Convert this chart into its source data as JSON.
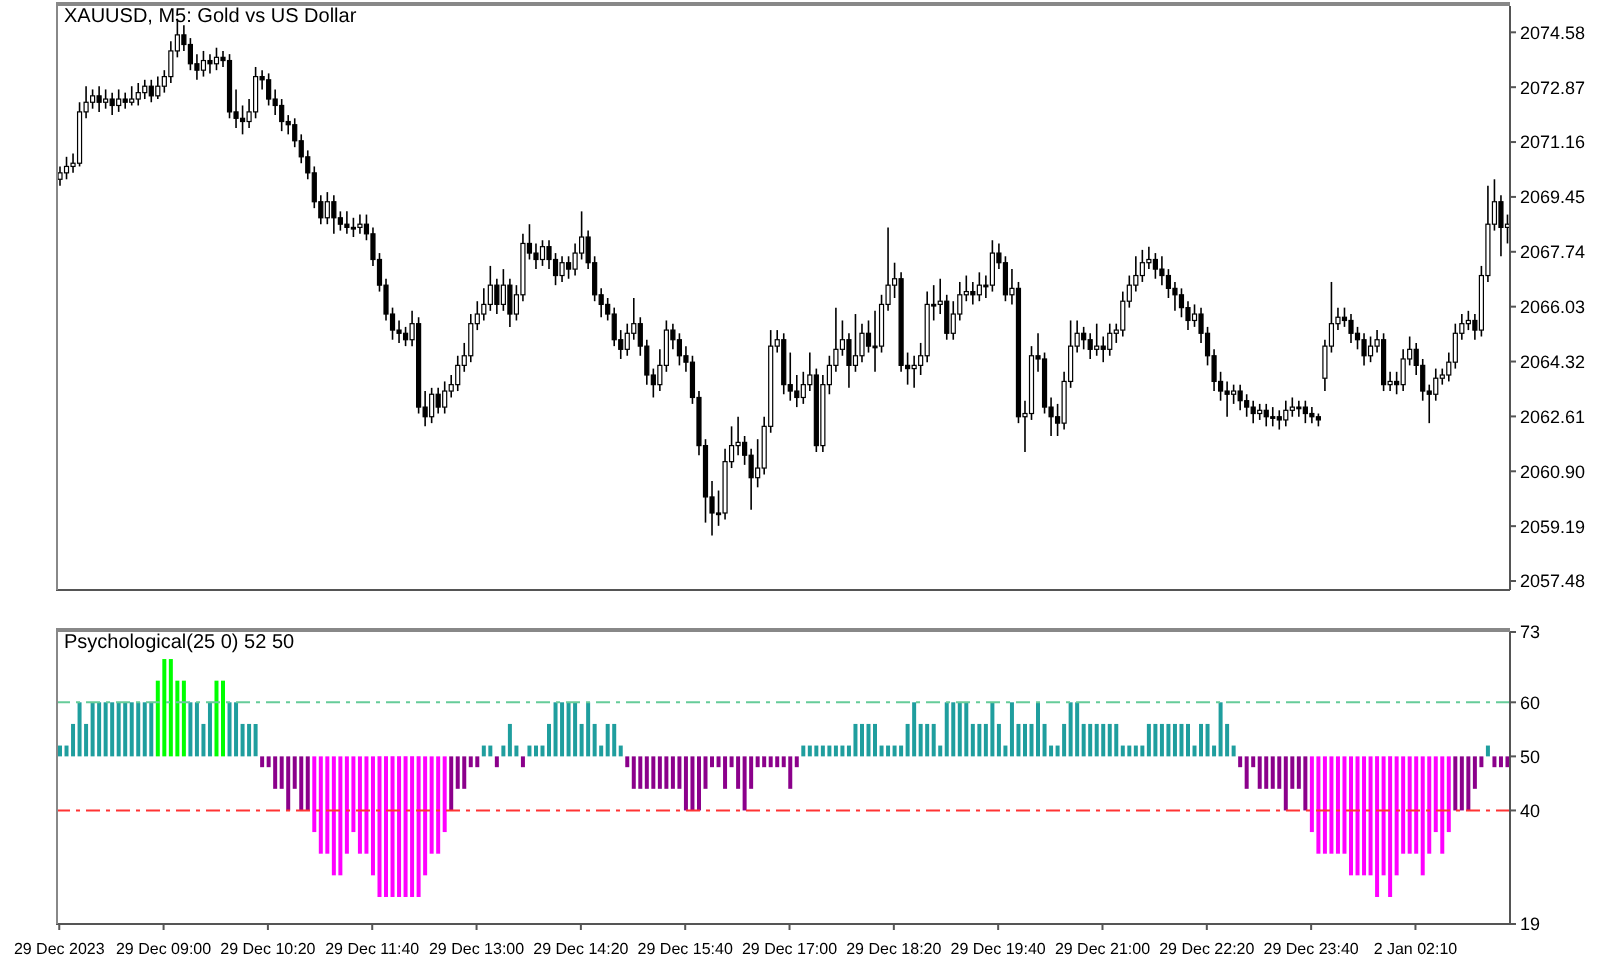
{
  "chart_data": [
    {
      "type": "candlestick",
      "title": "XAUUSD, M5:  Gold vs US Dollar",
      "color": "#000000",
      "tick_labels": "y",
      "ylim": [
        2057.2,
        2075.4
      ],
      "yticks": [
        2074.58,
        2072.87,
        2071.16,
        2069.45,
        2067.74,
        2066.03,
        2064.32,
        2062.61,
        {
          "value": 2060.9,
          "label": "2060.90"
        },
        2059.19,
        2057.48
      ],
      "ohlc": [
        [
          2070.0,
          2070.4,
          2069.8,
          2070.2
        ],
        [
          2070.2,
          2070.7,
          2070.0,
          2070.4
        ],
        [
          2070.4,
          2070.8,
          2070.2,
          2070.5
        ],
        [
          2070.5,
          2072.4,
          2070.4,
          2072.1
        ],
        [
          2072.1,
          2072.9,
          2071.9,
          2072.4
        ],
        [
          2072.4,
          2072.8,
          2072.2,
          2072.6
        ],
        [
          2072.6,
          2072.9,
          2072.1,
          2072.4
        ],
        [
          2072.4,
          2072.8,
          2072.2,
          2072.5
        ],
        [
          2072.5,
          2072.7,
          2072.0,
          2072.3
        ],
        [
          2072.3,
          2072.8,
          2072.1,
          2072.5
        ],
        [
          2072.5,
          2072.7,
          2072.2,
          2072.4
        ],
        [
          2072.4,
          2072.9,
          2072.3,
          2072.5
        ],
        [
          2072.5,
          2073.0,
          2072.3,
          2072.7
        ],
        [
          2072.7,
          2073.1,
          2072.5,
          2072.9
        ],
        [
          2072.9,
          2073.1,
          2072.4,
          2072.6
        ],
        [
          2072.6,
          2073.2,
          2072.5,
          2072.9
        ],
        [
          2072.9,
          2073.4,
          2072.7,
          2073.2
        ],
        [
          2073.2,
          2074.3,
          2073.0,
          2074.0
        ],
        [
          2074.0,
          2075.0,
          2073.8,
          2074.5
        ],
        [
          2074.5,
          2074.8,
          2074.0,
          2074.2
        ],
        [
          2074.2,
          2074.4,
          2073.4,
          2073.6
        ],
        [
          2073.6,
          2073.9,
          2073.1,
          2073.4
        ],
        [
          2073.4,
          2074.0,
          2073.2,
          2073.7
        ],
        [
          2073.7,
          2073.9,
          2073.3,
          2073.6
        ],
        [
          2073.6,
          2074.1,
          2073.4,
          2073.8
        ],
        [
          2073.8,
          2074.0,
          2073.5,
          2073.7
        ],
        [
          2073.7,
          2073.9,
          2071.9,
          2072.1
        ],
        [
          2072.1,
          2072.8,
          2071.6,
          2071.9
        ],
        [
          2071.9,
          2072.3,
          2071.4,
          2071.8
        ],
        [
          2071.8,
          2072.5,
          2071.6,
          2072.1
        ],
        [
          2072.1,
          2073.5,
          2071.9,
          2073.2
        ],
        [
          2073.2,
          2073.4,
          2072.8,
          2073.1
        ],
        [
          2073.1,
          2073.3,
          2072.3,
          2072.5
        ],
        [
          2072.5,
          2072.8,
          2072.0,
          2072.3
        ],
        [
          2072.3,
          2072.5,
          2071.5,
          2071.8
        ],
        [
          2071.8,
          2072.0,
          2071.4,
          2071.7
        ],
        [
          2071.7,
          2071.9,
          2071.0,
          2071.2
        ],
        [
          2071.2,
          2071.4,
          2070.5,
          2070.7
        ],
        [
          2070.7,
          2070.9,
          2070.0,
          2070.2
        ],
        [
          2070.2,
          2070.4,
          2069.1,
          2069.3
        ],
        [
          2069.3,
          2069.5,
          2068.6,
          2068.8
        ],
        [
          2068.8,
          2069.6,
          2068.6,
          2069.3
        ],
        [
          2069.3,
          2069.5,
          2068.3,
          2068.8
        ],
        [
          2068.8,
          2069.0,
          2068.4,
          2068.6
        ],
        [
          2068.6,
          2069.0,
          2068.3,
          2068.5
        ],
        [
          2068.5,
          2068.8,
          2068.2,
          2068.5
        ],
        [
          2068.5,
          2068.9,
          2068.3,
          2068.6
        ],
        [
          2068.6,
          2068.9,
          2068.1,
          2068.3
        ],
        [
          2068.3,
          2068.5,
          2067.3,
          2067.5
        ],
        [
          2067.5,
          2067.7,
          2066.5,
          2066.7
        ],
        [
          2066.7,
          2066.9,
          2065.6,
          2065.8
        ],
        [
          2065.8,
          2066.0,
          2065.0,
          2065.3
        ],
        [
          2065.3,
          2065.6,
          2064.9,
          2065.2
        ],
        [
          2065.2,
          2065.4,
          2064.8,
          2065.0
        ],
        [
          2065.0,
          2065.9,
          2064.8,
          2065.5
        ],
        [
          2065.5,
          2065.7,
          2062.7,
          2062.9
        ],
        [
          2062.9,
          2063.4,
          2062.3,
          2062.6
        ],
        [
          2062.6,
          2063.5,
          2062.4,
          2063.3
        ],
        [
          2063.3,
          2063.5,
          2062.7,
          2062.9
        ],
        [
          2062.9,
          2063.7,
          2062.7,
          2063.4
        ],
        [
          2063.4,
          2063.9,
          2063.2,
          2063.6
        ],
        [
          2063.6,
          2064.5,
          2063.4,
          2064.2
        ],
        [
          2064.2,
          2064.9,
          2064.0,
          2064.5
        ],
        [
          2064.5,
          2065.8,
          2064.3,
          2065.5
        ],
        [
          2065.5,
          2066.2,
          2065.3,
          2065.8
        ],
        [
          2065.8,
          2066.6,
          2065.6,
          2066.1
        ],
        [
          2066.1,
          2067.3,
          2065.9,
          2066.7
        ],
        [
          2066.7,
          2066.9,
          2065.8,
          2066.1
        ],
        [
          2066.1,
          2067.2,
          2065.9,
          2066.7
        ],
        [
          2066.7,
          2066.9,
          2065.4,
          2065.8
        ],
        [
          2065.8,
          2066.7,
          2065.6,
          2066.4
        ],
        [
          2066.4,
          2068.3,
          2066.2,
          2068.0
        ],
        [
          2068.0,
          2068.6,
          2067.5,
          2067.7
        ],
        [
          2067.7,
          2068.0,
          2067.2,
          2067.5
        ],
        [
          2067.5,
          2068.1,
          2067.3,
          2067.9
        ],
        [
          2067.9,
          2068.1,
          2067.2,
          2067.5
        ],
        [
          2067.5,
          2067.7,
          2066.7,
          2067.0
        ],
        [
          2067.0,
          2067.6,
          2066.8,
          2067.4
        ],
        [
          2067.4,
          2067.6,
          2066.9,
          2067.2
        ],
        [
          2067.2,
          2068.0,
          2067.0,
          2067.7
        ],
        [
          2067.7,
          2069.0,
          2067.5,
          2068.2
        ],
        [
          2068.2,
          2068.4,
          2067.2,
          2067.4
        ],
        [
          2067.4,
          2067.6,
          2066.2,
          2066.4
        ],
        [
          2066.4,
          2066.6,
          2065.7,
          2066.1
        ],
        [
          2066.1,
          2066.3,
          2065.6,
          2065.8
        ],
        [
          2065.8,
          2066.0,
          2064.8,
          2065.0
        ],
        [
          2065.0,
          2065.3,
          2064.4,
          2064.7
        ],
        [
          2064.7,
          2065.5,
          2064.5,
          2065.2
        ],
        [
          2065.2,
          2066.3,
          2065.0,
          2065.5
        ],
        [
          2065.5,
          2065.7,
          2064.5,
          2064.8
        ],
        [
          2064.8,
          2065.0,
          2063.6,
          2063.9
        ],
        [
          2063.9,
          2064.1,
          2063.2,
          2063.6
        ],
        [
          2063.6,
          2064.7,
          2063.4,
          2064.2
        ],
        [
          2064.2,
          2065.6,
          2064.0,
          2065.3
        ],
        [
          2065.3,
          2065.5,
          2064.7,
          2065.0
        ],
        [
          2065.0,
          2065.2,
          2064.2,
          2064.5
        ],
        [
          2064.5,
          2064.8,
          2064.0,
          2064.3
        ],
        [
          2064.3,
          2064.5,
          2063.0,
          2063.2
        ],
        [
          2063.2,
          2063.4,
          2061.4,
          2061.7
        ],
        [
          2061.7,
          2061.9,
          2059.3,
          2060.1
        ],
        [
          2060.1,
          2060.6,
          2058.9,
          2059.6
        ],
        [
          2059.6,
          2060.3,
          2059.2,
          2059.6
        ],
        [
          2059.6,
          2061.6,
          2059.4,
          2061.2
        ],
        [
          2061.2,
          2062.3,
          2061.0,
          2061.7
        ],
        [
          2061.7,
          2062.6,
          2061.4,
          2061.8
        ],
        [
          2061.8,
          2062.0,
          2061.1,
          2061.4
        ],
        [
          2061.4,
          2061.6,
          2059.7,
          2060.7
        ],
        [
          2060.7,
          2061.9,
          2060.4,
          2061.0
        ],
        [
          2061.0,
          2062.6,
          2060.8,
          2062.3
        ],
        [
          2062.3,
          2065.3,
          2062.1,
          2064.8
        ],
        [
          2064.8,
          2065.3,
          2064.6,
          2065.0
        ],
        [
          2065.0,
          2065.2,
          2063.3,
          2063.6
        ],
        [
          2063.6,
          2064.6,
          2063.1,
          2063.4
        ],
        [
          2063.4,
          2063.9,
          2062.9,
          2063.2
        ],
        [
          2063.2,
          2064.0,
          2063.0,
          2063.6
        ],
        [
          2063.6,
          2064.6,
          2063.4,
          2063.9
        ],
        [
          2063.9,
          2064.1,
          2061.5,
          2061.7
        ],
        [
          2061.7,
          2063.9,
          2061.5,
          2063.6
        ],
        [
          2063.6,
          2064.5,
          2063.3,
          2064.2
        ],
        [
          2064.2,
          2066.0,
          2064.0,
          2064.7
        ],
        [
          2064.7,
          2065.6,
          2064.5,
          2065.0
        ],
        [
          2065.0,
          2065.2,
          2063.5,
          2064.2
        ],
        [
          2064.2,
          2065.8,
          2064.0,
          2064.5
        ],
        [
          2064.5,
          2065.5,
          2064.3,
          2065.2
        ],
        [
          2065.2,
          2065.6,
          2064.6,
          2064.8
        ],
        [
          2064.8,
          2065.9,
          2064.0,
          2064.8
        ],
        [
          2064.8,
          2066.4,
          2064.6,
          2066.1
        ],
        [
          2066.1,
          2068.5,
          2065.9,
          2066.7
        ],
        [
          2066.7,
          2067.4,
          2066.3,
          2066.9
        ],
        [
          2066.9,
          2067.1,
          2064.0,
          2064.2
        ],
        [
          2064.2,
          2064.6,
          2063.6,
          2064.1
        ],
        [
          2064.1,
          2064.5,
          2063.5,
          2064.2
        ],
        [
          2064.2,
          2064.9,
          2063.9,
          2064.5
        ],
        [
          2064.5,
          2066.5,
          2064.3,
          2066.1
        ],
        [
          2066.1,
          2066.7,
          2065.6,
          2066.1
        ],
        [
          2066.1,
          2066.9,
          2065.8,
          2066.2
        ],
        [
          2066.2,
          2066.4,
          2065.0,
          2065.2
        ],
        [
          2065.2,
          2066.2,
          2065.0,
          2065.8
        ],
        [
          2065.8,
          2066.8,
          2065.6,
          2066.4
        ],
        [
          2066.4,
          2067.0,
          2066.2,
          2066.5
        ],
        [
          2066.5,
          2066.8,
          2066.1,
          2066.4
        ],
        [
          2066.4,
          2067.1,
          2066.2,
          2066.7
        ],
        [
          2066.7,
          2067.0,
          2066.3,
          2066.7
        ],
        [
          2066.7,
          2068.1,
          2066.5,
          2067.7
        ],
        [
          2067.7,
          2068.0,
          2067.2,
          2067.4
        ],
        [
          2067.4,
          2067.6,
          2066.2,
          2066.4
        ],
        [
          2066.4,
          2067.2,
          2066.1,
          2066.6
        ],
        [
          2066.6,
          2066.8,
          2062.4,
          2062.6
        ],
        [
          2062.6,
          2063.1,
          2061.5,
          2062.7
        ],
        [
          2062.7,
          2064.8,
          2062.5,
          2064.5
        ],
        [
          2064.5,
          2065.2,
          2064.0,
          2064.4
        ],
        [
          2064.4,
          2064.6,
          2062.7,
          2062.9
        ],
        [
          2062.9,
          2063.2,
          2062.0,
          2062.6
        ],
        [
          2062.6,
          2063.0,
          2062.0,
          2062.4
        ],
        [
          2062.4,
          2064.0,
          2062.2,
          2063.7
        ],
        [
          2063.7,
          2065.6,
          2063.5,
          2064.8
        ],
        [
          2064.8,
          2065.6,
          2064.6,
          2065.2
        ],
        [
          2065.2,
          2065.4,
          2064.7,
          2065.0
        ],
        [
          2065.0,
          2065.2,
          2064.4,
          2064.7
        ],
        [
          2064.7,
          2065.5,
          2064.5,
          2064.8
        ],
        [
          2064.8,
          2065.1,
          2064.3,
          2064.7
        ],
        [
          2064.7,
          2065.5,
          2064.5,
          2065.2
        ],
        [
          2065.2,
          2065.5,
          2064.9,
          2065.3
        ],
        [
          2065.3,
          2066.5,
          2065.1,
          2066.2
        ],
        [
          2066.2,
          2067.0,
          2066.0,
          2066.7
        ],
        [
          2066.7,
          2067.6,
          2066.5,
          2067.0
        ],
        [
          2067.0,
          2067.8,
          2066.8,
          2067.4
        ],
        [
          2067.4,
          2067.9,
          2067.2,
          2067.5
        ],
        [
          2067.5,
          2067.7,
          2066.9,
          2067.2
        ],
        [
          2067.2,
          2067.6,
          2066.7,
          2067.0
        ],
        [
          2067.0,
          2067.2,
          2066.3,
          2066.6
        ],
        [
          2066.6,
          2066.8,
          2065.9,
          2066.4
        ],
        [
          2066.4,
          2066.6,
          2065.7,
          2066.0
        ],
        [
          2066.0,
          2066.2,
          2065.3,
          2065.6
        ],
        [
          2065.6,
          2066.1,
          2065.4,
          2065.8
        ],
        [
          2065.8,
          2066.0,
          2064.9,
          2065.2
        ],
        [
          2065.2,
          2065.4,
          2064.2,
          2064.5
        ],
        [
          2064.5,
          2064.7,
          2063.4,
          2063.7
        ],
        [
          2063.7,
          2064.0,
          2063.1,
          2063.4
        ],
        [
          2063.4,
          2063.7,
          2062.6,
          2063.3
        ],
        [
          2063.3,
          2063.6,
          2063.0,
          2063.4
        ],
        [
          2063.4,
          2063.6,
          2062.8,
          2063.1
        ],
        [
          2063.1,
          2063.3,
          2062.6,
          2062.9
        ],
        [
          2062.9,
          2063.1,
          2062.4,
          2062.7
        ],
        [
          2062.7,
          2063.0,
          2062.5,
          2062.8
        ],
        [
          2062.8,
          2063.0,
          2062.3,
          2062.6
        ],
        [
          2062.6,
          2062.9,
          2062.3,
          2062.6
        ],
        [
          2062.6,
          2062.8,
          2062.2,
          2062.5
        ],
        [
          2062.5,
          2063.1,
          2062.3,
          2062.8
        ],
        [
          2062.8,
          2063.2,
          2062.6,
          2062.9
        ],
        [
          2062.9,
          2063.1,
          2062.6,
          2062.9
        ],
        [
          2062.9,
          2063.1,
          2062.4,
          2062.7
        ],
        [
          2062.7,
          2062.9,
          2062.4,
          2062.6
        ],
        [
          2062.6,
          2062.7,
          2062.3,
          2062.5
        ],
        [
          2063.8,
          2065.0,
          2063.4,
          2064.8
        ],
        [
          2064.8,
          2066.8,
          2064.6,
          2065.5
        ],
        [
          2065.5,
          2066.0,
          2065.3,
          2065.7
        ],
        [
          2065.7,
          2066.0,
          2065.4,
          2065.6
        ],
        [
          2065.6,
          2065.8,
          2064.9,
          2065.2
        ],
        [
          2065.2,
          2065.4,
          2064.7,
          2065.0
        ],
        [
          2065.0,
          2065.2,
          2064.2,
          2064.5
        ],
        [
          2064.5,
          2065.1,
          2064.3,
          2064.8
        ],
        [
          2064.8,
          2065.3,
          2064.6,
          2065.0
        ],
        [
          2065.0,
          2065.2,
          2063.4,
          2063.6
        ],
        [
          2063.6,
          2064.0,
          2063.4,
          2063.7
        ],
        [
          2063.7,
          2064.0,
          2063.3,
          2063.6
        ],
        [
          2063.6,
          2064.7,
          2063.4,
          2064.4
        ],
        [
          2064.4,
          2065.1,
          2064.2,
          2064.7
        ],
        [
          2064.7,
          2064.9,
          2063.9,
          2064.2
        ],
        [
          2064.2,
          2064.4,
          2063.1,
          2063.4
        ],
        [
          2063.4,
          2063.6,
          2062.4,
          2063.3
        ],
        [
          2063.3,
          2064.1,
          2063.1,
          2063.8
        ],
        [
          2063.8,
          2064.1,
          2063.6,
          2063.9
        ],
        [
          2063.9,
          2064.6,
          2063.7,
          2064.3
        ],
        [
          2064.3,
          2065.5,
          2064.1,
          2065.2
        ],
        [
          2065.2,
          2065.8,
          2065.0,
          2065.5
        ],
        [
          2065.5,
          2065.9,
          2065.3,
          2065.6
        ],
        [
          2065.6,
          2065.8,
          2065.0,
          2065.3
        ],
        [
          2065.3,
          2067.3,
          2065.1,
          2067.0
        ],
        [
          2067.0,
          2069.8,
          2066.8,
          2068.6
        ],
        [
          2068.6,
          2070.0,
          2068.4,
          2069.3
        ],
        [
          2069.3,
          2069.5,
          2067.6,
          2068.5
        ],
        [
          2068.5,
          2068.9,
          2068.0,
          2068.6
        ]
      ]
    },
    {
      "type": "bar",
      "title": "Psychological(25 0) 52 50",
      "categories": [
        "29 Dec 2023",
        null,
        null,
        null,
        null,
        null,
        null,
        null,
        null,
        null,
        null,
        null,
        null,
        null,
        null,
        null,
        "29 Dec 09:00",
        null,
        null,
        null,
        null,
        null,
        null,
        null,
        null,
        null,
        null,
        null,
        null,
        null,
        null,
        null,
        "29 Dec 10:20",
        null,
        null,
        null,
        null,
        null,
        null,
        null,
        null,
        null,
        null,
        null,
        null,
        null,
        null,
        null,
        "29 Dec 11:40",
        null,
        null,
        null,
        null,
        null,
        null,
        null,
        null,
        null,
        null,
        null,
        null,
        null,
        null,
        null,
        "29 Dec 13:00",
        null,
        null,
        null,
        null,
        null,
        null,
        null,
        null,
        null,
        null,
        null,
        null,
        null,
        null,
        null,
        "29 Dec 14:20",
        null,
        null,
        null,
        null,
        null,
        null,
        null,
        null,
        null,
        null,
        null,
        null,
        null,
        null,
        null,
        "29 Dec 15:40",
        null,
        null,
        null,
        null,
        null,
        null,
        null,
        null,
        null,
        null,
        null,
        null,
        null,
        null,
        null,
        "29 Dec 17:00",
        null,
        null,
        null,
        null,
        null,
        null,
        null,
        null,
        null,
        null,
        null,
        null,
        null,
        null,
        null,
        "29 Dec 18:20",
        null,
        null,
        null,
        null,
        null,
        null,
        null,
        null,
        null,
        null,
        null,
        null,
        null,
        null,
        null,
        "29 Dec 19:40",
        null,
        null,
        null,
        null,
        null,
        null,
        null,
        null,
        null,
        null,
        null,
        null,
        null,
        null,
        null,
        "29 Dec 21:00",
        null,
        null,
        null,
        null,
        null,
        null,
        null,
        null,
        null,
        null,
        null,
        null,
        null,
        null,
        null,
        "29 Dec 22:20",
        null,
        null,
        null,
        null,
        null,
        null,
        null,
        null,
        null,
        null,
        null,
        null,
        null,
        null,
        null,
        "29 Dec 23:40",
        null,
        null,
        null,
        null,
        null,
        null,
        null,
        null,
        null,
        null,
        null,
        null,
        null,
        null,
        null,
        "2 Jan 02:10",
        null,
        null,
        null,
        null,
        null,
        null,
        null,
        null,
        null,
        null,
        null,
        null,
        null,
        null
      ],
      "ylim": [
        19,
        73
      ],
      "yticks": [
        73,
        60,
        50,
        40,
        19
      ],
      "ref_lines": [
        {
          "axis": "y",
          "value": 60,
          "color": "#66cc99",
          "line_style": "dashed"
        },
        {
          "axis": "y",
          "value": 40,
          "color": "#ff3333",
          "line_style": "dashed"
        }
      ],
      "values": [
        2,
        2,
        6,
        10,
        6,
        10,
        10,
        10,
        10,
        10,
        10,
        10,
        10,
        10,
        10,
        14,
        18,
        18,
        14,
        14,
        10,
        10,
        6,
        10,
        14,
        14,
        10,
        10,
        6,
        6,
        6,
        -2,
        -2,
        -6,
        -6,
        -10,
        -6,
        -10,
        -10,
        -14,
        -18,
        -18,
        -22,
        -22,
        -18,
        -14,
        -18,
        -18,
        -22,
        -26,
        -26,
        -26,
        -26,
        -26,
        -26,
        -26,
        -22,
        -18,
        -18,
        -14,
        -10,
        -6,
        -6,
        -2,
        -2,
        2,
        2,
        -2,
        2,
        6,
        2,
        -2,
        2,
        2,
        2,
        6,
        10,
        10,
        10,
        10,
        6,
        10,
        6,
        2,
        6,
        6,
        2,
        -2,
        -6,
        -6,
        -6,
        -6,
        -6,
        -6,
        -6,
        -6,
        -10,
        -10,
        -10,
        -6,
        -2,
        -2,
        -6,
        -2,
        -6,
        -10,
        -6,
        -2,
        -2,
        -2,
        -2,
        -2,
        -6,
        -2,
        2,
        2,
        2,
        2,
        2,
        2,
        2,
        2,
        6,
        6,
        6,
        6,
        2,
        2,
        2,
        2,
        6,
        10,
        6,
        6,
        6,
        2,
        10,
        10,
        10,
        10,
        6,
        6,
        6,
        10,
        6,
        2,
        10,
        6,
        6,
        6,
        10,
        6,
        2,
        2,
        6,
        10,
        10,
        6,
        6,
        6,
        6,
        6,
        6,
        2,
        2,
        2,
        2,
        6,
        6,
        6,
        6,
        6,
        6,
        6,
        2,
        6,
        6,
        2,
        10,
        6,
        2,
        -2,
        -6,
        -2,
        -6,
        -6,
        -6,
        -6,
        -10,
        -6,
        -6,
        -10,
        -14,
        -18,
        -18,
        -18,
        -18,
        -18,
        -22,
        -22,
        -22,
        -22,
        -26,
        -22,
        -26,
        -22,
        -18,
        -18,
        -18,
        -22,
        -18,
        -14,
        -18,
        -14,
        -10,
        -10,
        -10,
        -6,
        -2,
        2,
        -2,
        -2,
        -2
      ],
      "base": [
        50,
        50,
        50,
        50,
        50,
        50,
        50,
        50,
        50,
        50,
        50,
        50,
        50,
        50,
        50,
        50,
        50,
        50,
        50,
        50,
        50,
        50,
        50,
        50,
        50,
        50,
        50,
        50,
        50,
        50,
        50,
        50,
        50,
        50,
        50,
        50,
        50,
        50,
        50,
        50,
        50,
        50,
        50,
        50,
        50,
        50,
        50,
        50,
        50,
        50,
        50,
        50,
        50,
        50,
        50,
        50,
        50,
        50,
        50,
        50,
        50,
        50,
        50,
        50,
        50,
        50,
        50,
        50,
        50,
        50,
        50,
        50,
        50,
        50,
        50,
        50,
        50,
        50,
        50,
        50,
        50,
        50,
        50,
        50,
        50,
        50,
        50,
        50,
        50,
        50,
        50,
        50,
        50,
        50,
        50,
        50,
        50,
        50,
        50,
        50,
        50,
        50,
        50,
        50,
        50,
        50,
        50,
        50,
        50,
        50,
        50,
        50,
        50,
        50,
        50,
        50,
        50,
        50,
        50,
        50,
        50,
        50,
        50,
        50,
        50,
        50,
        50,
        50,
        50,
        50,
        50,
        50,
        50,
        50,
        50,
        50,
        50,
        50,
        50,
        50,
        50,
        50,
        50,
        50,
        50,
        50,
        50,
        50,
        50,
        50,
        50,
        50,
        50,
        50,
        50,
        50,
        50,
        50,
        50,
        50,
        50,
        50,
        50,
        50,
        50,
        50,
        50,
        50,
        50,
        50,
        50,
        50,
        50,
        50,
        50,
        50,
        50,
        50,
        50,
        50,
        50,
        50,
        50,
        50,
        50,
        50,
        50,
        50,
        50,
        50,
        50,
        50,
        50,
        50,
        50,
        50,
        50,
        50,
        50,
        50,
        50,
        50,
        50,
        50,
        50,
        50,
        50,
        50,
        50,
        50,
        50,
        50,
        50,
        50,
        50,
        50,
        50,
        50,
        50,
        50,
        50,
        50,
        50
      ],
      "colors": [
        "#1f9e9e",
        "#1f9e9e",
        "#1f9e9e",
        "#1f9e9e",
        "#1f9e9e",
        "#1f9e9e",
        "#1f9e9e",
        "#1f9e9e",
        "#1f9e9e",
        "#1f9e9e",
        "#1f9e9e",
        "#1f9e9e",
        "#1f9e9e",
        "#1f9e9e",
        "#1f9e9e",
        "#00ff00",
        "#00ff00",
        "#00ff00",
        "#00ff00",
        "#00ff00",
        "#1f9e9e",
        "#1f9e9e",
        "#1f9e9e",
        "#1f9e9e",
        "#00ff00",
        "#00ff00",
        "#1f9e9e",
        "#1f9e9e",
        "#1f9e9e",
        "#1f9e9e",
        "#1f9e9e",
        "#8b008b",
        "#8b008b",
        "#8b008b",
        "#8b008b",
        "#8b008b",
        "#8b008b",
        "#8b008b",
        "#8b008b",
        "#ff00ff",
        "#ff00ff",
        "#ff00ff",
        "#ff00ff",
        "#ff00ff",
        "#ff00ff",
        "#ff00ff",
        "#ff00ff",
        "#ff00ff",
        "#ff00ff",
        "#ff00ff",
        "#ff00ff",
        "#ff00ff",
        "#ff00ff",
        "#ff00ff",
        "#ff00ff",
        "#ff00ff",
        "#ff00ff",
        "#ff00ff",
        "#ff00ff",
        "#ff00ff",
        "#8b008b",
        "#8b008b",
        "#8b008b",
        "#8b008b",
        "#8b008b",
        "#1f9e9e",
        "#1f9e9e",
        "#8b008b",
        "#1f9e9e",
        "#1f9e9e",
        "#1f9e9e",
        "#8b008b",
        "#1f9e9e",
        "#1f9e9e",
        "#1f9e9e",
        "#1f9e9e",
        "#1f9e9e",
        "#1f9e9e",
        "#1f9e9e",
        "#1f9e9e",
        "#1f9e9e",
        "#1f9e9e",
        "#1f9e9e",
        "#1f9e9e",
        "#1f9e9e",
        "#1f9e9e",
        "#1f9e9e",
        "#8b008b",
        "#8b008b",
        "#8b008b",
        "#8b008b",
        "#8b008b",
        "#8b008b",
        "#8b008b",
        "#8b008b",
        "#8b008b",
        "#8b008b",
        "#8b008b",
        "#8b008b",
        "#8b008b",
        "#8b008b",
        "#8b008b",
        "#8b008b",
        "#8b008b",
        "#8b008b",
        "#8b008b",
        "#8b008b",
        "#8b008b",
        "#8b008b",
        "#8b008b",
        "#8b008b",
        "#8b008b",
        "#8b008b",
        "#8b008b",
        "#1f9e9e",
        "#1f9e9e",
        "#1f9e9e",
        "#1f9e9e",
        "#1f9e9e",
        "#1f9e9e",
        "#1f9e9e",
        "#1f9e9e",
        "#1f9e9e",
        "#1f9e9e",
        "#1f9e9e",
        "#1f9e9e",
        "#1f9e9e",
        "#1f9e9e",
        "#1f9e9e",
        "#1f9e9e",
        "#1f9e9e",
        "#1f9e9e",
        "#1f9e9e",
        "#1f9e9e",
        "#1f9e9e",
        "#1f9e9e",
        "#1f9e9e",
        "#1f9e9e",
        "#1f9e9e",
        "#1f9e9e",
        "#1f9e9e",
        "#1f9e9e",
        "#1f9e9e",
        "#1f9e9e",
        "#1f9e9e",
        "#1f9e9e",
        "#1f9e9e",
        "#1f9e9e",
        "#1f9e9e",
        "#1f9e9e",
        "#1f9e9e",
        "#1f9e9e",
        "#1f9e9e",
        "#1f9e9e",
        "#1f9e9e",
        "#1f9e9e",
        "#1f9e9e",
        "#1f9e9e",
        "#1f9e9e",
        "#1f9e9e",
        "#1f9e9e",
        "#1f9e9e",
        "#1f9e9e",
        "#1f9e9e",
        "#1f9e9e",
        "#1f9e9e",
        "#1f9e9e",
        "#1f9e9e",
        "#1f9e9e",
        "#1f9e9e",
        "#1f9e9e",
        "#1f9e9e",
        "#1f9e9e",
        "#1f9e9e",
        "#1f9e9e",
        "#1f9e9e",
        "#1f9e9e",
        "#1f9e9e",
        "#1f9e9e",
        "#1f9e9e",
        "#1f9e9e",
        "#8b008b",
        "#8b008b",
        "#8b008b",
        "#8b008b",
        "#8b008b",
        "#8b008b",
        "#8b008b",
        "#8b008b",
        "#8b008b",
        "#8b008b",
        "#8b008b",
        "#ff00ff",
        "#ff00ff",
        "#ff00ff",
        "#ff00ff",
        "#ff00ff",
        "#ff00ff",
        "#ff00ff",
        "#ff00ff",
        "#ff00ff",
        "#ff00ff",
        "#ff00ff",
        "#ff00ff",
        "#ff00ff",
        "#ff00ff",
        "#ff00ff",
        "#ff00ff",
        "#ff00ff",
        "#ff00ff",
        "#ff00ff",
        "#ff00ff",
        "#ff00ff",
        "#ff00ff",
        "#8b008b",
        "#8b008b",
        "#8b008b",
        "#8b008b",
        "#8b008b",
        "#1f9e9e",
        "#8b008b",
        "#8b008b",
        "#8b008b"
      ]
    }
  ]
}
